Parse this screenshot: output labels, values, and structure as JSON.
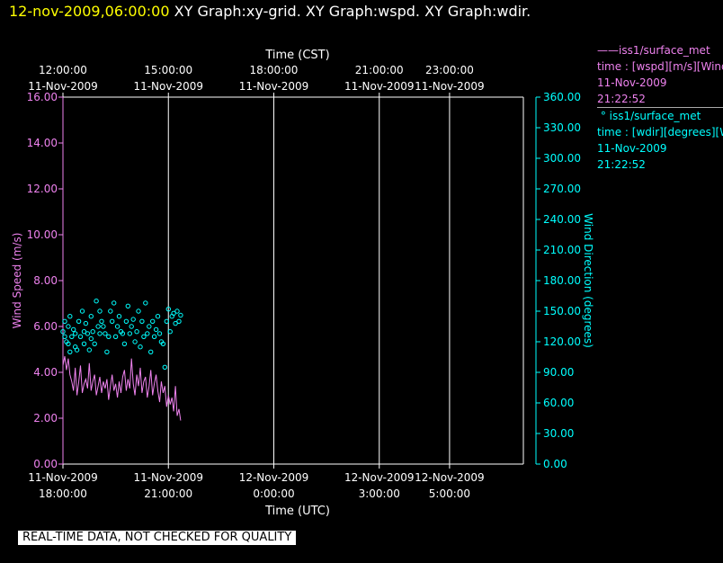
{
  "header": {
    "timestamp": "12-nov-2009,06:00:00",
    "graphs": "XY Graph:xy-grid.  XY Graph:wspd.  XY Graph:wdir."
  },
  "colors": {
    "wspd": "#ee82ee",
    "wdir": "#00ffff",
    "grid": "#ffffff",
    "background": "#000000"
  },
  "legend": {
    "wspd": {
      "name": "iss1/surface_met",
      "line1": "time : [wspd][m/s][Wind Speed]",
      "date": "11-Nov-2009",
      "time": "21:22:52"
    },
    "wdir": {
      "name": "iss1/surface_met",
      "line1": "time : [wdir][degrees][Wind Direction]",
      "date": "11-Nov-2009",
      "time": "21:22:52"
    }
  },
  "notice": "REAL-TIME DATA, NOT CHECKED FOR QUALITY",
  "chart_data": {
    "type": "scatter",
    "top_axis_label": "Time (CST)",
    "bottom_axis_label": "Time (UTC)",
    "ylabel_left": "Wind Speed (m/s)",
    "ylabel_right": "Wind Direction (degrees)",
    "x_utc_hours_range": [
      18.0,
      31.1
    ],
    "ylim_left": [
      0,
      16
    ],
    "ylim_right": [
      0,
      360
    ],
    "grid": "vertical lines at labeled times",
    "bottom_ticks": [
      {
        "x": 18,
        "date": "11-Nov-2009",
        "time": "18:00:00"
      },
      {
        "x": 21,
        "date": "11-Nov-2009",
        "time": "21:00:00"
      },
      {
        "x": 24,
        "date": "12-Nov-2009",
        "time": "0:00:00"
      },
      {
        "x": 27,
        "date": "12-Nov-2009",
        "time": "3:00:00"
      },
      {
        "x": 29,
        "date": "12-Nov-2009",
        "time": "5:00:00"
      }
    ],
    "top_ticks": [
      {
        "x": 18,
        "time": "12:00:00",
        "date": "11-Nov-2009"
      },
      {
        "x": 21,
        "time": "15:00:00",
        "date": "11-Nov-2009"
      },
      {
        "x": 24,
        "time": "18:00:00",
        "date": "11-Nov-2009"
      },
      {
        "x": 27,
        "time": "21:00:00",
        "date": "11-Nov-2009"
      },
      {
        "x": 29,
        "time": "23:00:00",
        "date": "11-Nov-2009"
      }
    ],
    "left_ticks": [
      "0.00",
      "2.00",
      "4.00",
      "6.00",
      "8.00",
      "10.00",
      "12.00",
      "14.00",
      "16.00"
    ],
    "right_ticks": [
      "0.00",
      "30.00",
      "60.00",
      "90.00",
      "120.00",
      "150.00",
      "180.00",
      "210.00",
      "240.00",
      "270.00",
      "300.00",
      "330.00",
      "360.00"
    ],
    "series": [
      {
        "key": "wspd",
        "name": "iss1/surface_met",
        "style": "line",
        "x": [
          18.0,
          18.05,
          18.1,
          18.15,
          18.2,
          18.25,
          18.3,
          18.35,
          18.4,
          18.45,
          18.5,
          18.55,
          18.6,
          18.65,
          18.7,
          18.75,
          18.8,
          18.85,
          18.9,
          18.95,
          19.0,
          19.05,
          19.1,
          19.15,
          19.2,
          19.25,
          19.3,
          19.35,
          19.4,
          19.45,
          19.5,
          19.55,
          19.6,
          19.65,
          19.7,
          19.75,
          19.8,
          19.85,
          19.9,
          19.95,
          20.0,
          20.05,
          20.1,
          20.15,
          20.2,
          20.25,
          20.3,
          20.35,
          20.4,
          20.45,
          20.5,
          20.55,
          20.6,
          20.65,
          20.7,
          20.75,
          20.8,
          20.85,
          20.9,
          20.95,
          21.0,
          21.05,
          21.1,
          21.15,
          21.2,
          21.25,
          21.3,
          21.35
        ],
        "values": [
          4.3,
          4.7,
          4.1,
          4.6,
          3.9,
          3.6,
          3.2,
          4.2,
          3.0,
          3.6,
          4.3,
          3.1,
          3.5,
          3.7,
          3.3,
          4.4,
          3.2,
          3.6,
          3.9,
          3.0,
          3.4,
          3.8,
          3.1,
          3.6,
          3.3,
          3.7,
          2.8,
          3.4,
          3.9,
          3.2,
          3.5,
          2.9,
          3.6,
          3.1,
          3.8,
          4.1,
          3.2,
          3.7,
          3.3,
          4.6,
          3.5,
          3.0,
          3.9,
          3.4,
          4.2,
          3.1,
          3.6,
          3.8,
          2.9,
          3.4,
          4.1,
          3.0,
          3.5,
          3.9,
          3.2,
          2.7,
          3.6,
          3.1,
          3.4,
          2.5,
          3.0,
          2.6,
          2.9,
          2.3,
          3.4,
          2.1,
          2.4,
          1.9
        ]
      },
      {
        "key": "wdir",
        "name": "iss1/surface_met",
        "style": "markers",
        "x": [
          18.0,
          18.05,
          18.05,
          18.1,
          18.15,
          18.15,
          18.2,
          18.2,
          18.25,
          18.3,
          18.35,
          18.35,
          18.4,
          18.45,
          18.5,
          18.55,
          18.6,
          18.6,
          18.65,
          18.7,
          18.75,
          18.8,
          18.8,
          18.85,
          18.9,
          18.95,
          19.0,
          19.05,
          19.05,
          19.1,
          19.15,
          19.2,
          19.25,
          19.3,
          19.35,
          19.4,
          19.45,
          19.5,
          19.55,
          19.6,
          19.65,
          19.7,
          19.75,
          19.8,
          19.85,
          19.9,
          19.95,
          20.0,
          20.05,
          20.1,
          20.15,
          20.2,
          20.25,
          20.3,
          20.35,
          20.4,
          20.45,
          20.5,
          20.55,
          20.6,
          20.65,
          20.7,
          20.75,
          20.8,
          20.85,
          20.9,
          20.95,
          21.0,
          21.05,
          21.1,
          21.15,
          21.2,
          21.25,
          21.3,
          21.35
        ],
        "values": [
          130,
          125,
          140,
          120,
          135,
          118,
          110,
          145,
          125,
          132,
          115,
          128,
          112,
          140,
          125,
          150,
          130,
          118,
          138,
          128,
          112,
          123,
          145,
          130,
          118,
          160,
          135,
          128,
          150,
          140,
          135,
          128,
          110,
          125,
          150,
          140,
          158,
          125,
          135,
          145,
          130,
          128,
          118,
          140,
          155,
          128,
          135,
          142,
          120,
          130,
          150,
          115,
          140,
          125,
          158,
          128,
          135,
          110,
          140,
          125,
          132,
          145,
          128,
          120,
          118,
          95,
          140,
          152,
          130,
          145,
          148,
          138,
          150,
          140,
          146
        ]
      }
    ]
  }
}
